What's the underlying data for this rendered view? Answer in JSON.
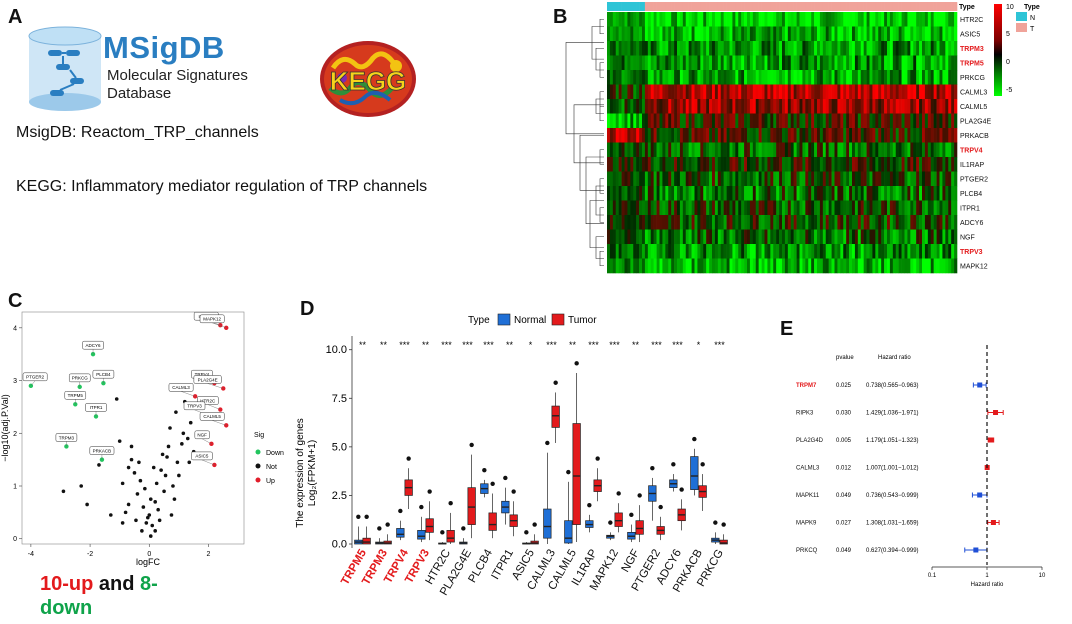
{
  "panel_labels": {
    "a": "A",
    "b": "B",
    "c": "C",
    "d": "D",
    "e": "E"
  },
  "panel_a": {
    "msigdb_logo_title": "MSigDB",
    "msigdb_logo_line1": "Molecular Signatures",
    "msigdb_logo_line2": "Database",
    "kegg_logo_text": "KEGG",
    "line1": "MsigDB: Reactom_TRP_channels",
    "line2": "KEGG: Inflammatory mediator regulation of TRP channels"
  },
  "panel_b": {
    "annotation_label": "Type",
    "genes": [
      {
        "name": "HTR2C",
        "red": false
      },
      {
        "name": "ASIC5",
        "red": false
      },
      {
        "name": "TRPM3",
        "red": true
      },
      {
        "name": "TRPM5",
        "red": true
      },
      {
        "name": "PRKCG",
        "red": false
      },
      {
        "name": "CALML3",
        "red": false
      },
      {
        "name": "CALML5",
        "red": false
      },
      {
        "name": "PLA2G4E",
        "red": false
      },
      {
        "name": "PRKACB",
        "red": false
      },
      {
        "name": "TRPV4",
        "red": true
      },
      {
        "name": "IL1RAP",
        "red": false
      },
      {
        "name": "PTGER2",
        "red": false
      },
      {
        "name": "PLCB4",
        "red": false
      },
      {
        "name": "ITPR1",
        "red": false
      },
      {
        "name": "ADCY6",
        "red": false
      },
      {
        "name": "NGF",
        "red": false
      },
      {
        "name": "TRPV3",
        "red": true
      },
      {
        "name": "MAPK12",
        "red": false
      }
    ],
    "colorbar_ticks": [
      "10",
      "5",
      "0",
      "-5"
    ],
    "legend_title": "Type",
    "legend_items": [
      {
        "label": "N",
        "color": "#2ec4d6"
      },
      {
        "label": "T",
        "color": "#f0a39a"
      }
    ]
  },
  "panel_c": {
    "chart_data": {
      "type": "scatter",
      "title": "",
      "xlabel": "logFC",
      "ylabel": "−log10(adj.P.Val)",
      "xlim": [
        -4.3,
        3.2
      ],
      "ylim": [
        -0.1,
        4.3
      ],
      "x_ticks": [
        "-4",
        "-2",
        "0",
        "2"
      ],
      "y_ticks": [
        "0",
        "1",
        "2",
        "3",
        "4"
      ],
      "legend_title": "Sig",
      "legend": [
        {
          "label": "Down",
          "color": "#22c55e"
        },
        {
          "label": "Not",
          "color": "#111111"
        },
        {
          "label": "Up",
          "color": "#e11d2a"
        }
      ],
      "labeled_points": [
        {
          "label": "IL1RAP",
          "x": 2.4,
          "y": 4.05,
          "sig": "Up"
        },
        {
          "label": "MAPK12",
          "x": 2.6,
          "y": 4.0,
          "sig": "Up"
        },
        {
          "label": "ADCY6",
          "x": -1.9,
          "y": 3.5,
          "sig": "Down"
        },
        {
          "label": "PLCB4",
          "x": -1.55,
          "y": 2.95,
          "sig": "Down"
        },
        {
          "label": "PRKCG",
          "x": -2.35,
          "y": 2.88,
          "sig": "Down"
        },
        {
          "label": "PTGER2",
          "x": -4.0,
          "y": 2.9,
          "sig": "Down"
        },
        {
          "label": "TRPV4",
          "x": 2.2,
          "y": 2.95,
          "sig": "Up"
        },
        {
          "label": "PLA2G4E",
          "x": 2.5,
          "y": 2.85,
          "sig": "Up"
        },
        {
          "label": "CALML3",
          "x": 1.55,
          "y": 2.7,
          "sig": "Up"
        },
        {
          "label": "TRPM5",
          "x": -2.5,
          "y": 2.55,
          "sig": "Down"
        },
        {
          "label": "HTR2C",
          "x": 2.4,
          "y": 2.45,
          "sig": "Up"
        },
        {
          "label": "TRPV3",
          "x": 1.95,
          "y": 2.35,
          "sig": "Up"
        },
        {
          "label": "ITPR1",
          "x": -1.8,
          "y": 2.32,
          "sig": "Down"
        },
        {
          "label": "CALML5",
          "x": 2.6,
          "y": 2.15,
          "sig": "Up"
        },
        {
          "label": "NGF",
          "x": 2.1,
          "y": 1.8,
          "sig": "Up"
        },
        {
          "label": "TRPM3",
          "x": -2.8,
          "y": 1.75,
          "sig": "Down"
        },
        {
          "label": "PRKACB",
          "x": -1.6,
          "y": 1.5,
          "sig": "Down"
        },
        {
          "label": "ASIC5",
          "x": 2.2,
          "y": 1.4,
          "sig": "Up"
        }
      ],
      "other_points": [
        [
          -2.9,
          0.9
        ],
        [
          -2.3,
          1.0
        ],
        [
          -2.1,
          0.65
        ],
        [
          -1.7,
          1.4
        ],
        [
          -1.1,
          2.65
        ],
        [
          -1.0,
          1.85
        ],
        [
          -0.9,
          1.05
        ],
        [
          -0.8,
          0.5
        ],
        [
          -0.7,
          1.35
        ],
        [
          -0.6,
          1.5
        ],
        [
          -0.5,
          1.25
        ],
        [
          -0.4,
          0.85
        ],
        [
          -0.3,
          1.1
        ],
        [
          -0.2,
          0.6
        ],
        [
          -0.1,
          0.3
        ],
        [
          0.0,
          0.45
        ],
        [
          0.1,
          0.25
        ],
        [
          0.2,
          0.7
        ],
        [
          0.3,
          0.55
        ],
        [
          0.4,
          1.3
        ],
        [
          0.5,
          0.9
        ],
        [
          0.6,
          1.55
        ],
        [
          0.7,
          2.1
        ],
        [
          0.8,
          1.0
        ],
        [
          0.9,
          2.4
        ],
        [
          1.0,
          1.2
        ],
        [
          1.1,
          1.8
        ],
        [
          1.2,
          2.6
        ],
        [
          1.3,
          1.9
        ],
        [
          1.4,
          2.2
        ],
        [
          1.5,
          1.65
        ],
        [
          -0.25,
          0.15
        ],
        [
          0.05,
          0.05
        ],
        [
          -0.45,
          0.35
        ],
        [
          0.35,
          0.35
        ],
        [
          0.75,
          0.45
        ],
        [
          -0.9,
          0.3
        ],
        [
          -0.15,
          0.95
        ],
        [
          0.25,
          1.05
        ],
        [
          0.55,
          1.2
        ],
        [
          -0.6,
          1.75
        ],
        [
          0.45,
          1.6
        ],
        [
          0.95,
          1.45
        ],
        [
          1.15,
          2.0
        ],
        [
          1.35,
          1.45
        ],
        [
          0.15,
          1.35
        ],
        [
          -0.35,
          1.45
        ],
        [
          0.65,
          1.75
        ],
        [
          -0.7,
          0.65
        ],
        [
          0.85,
          0.75
        ],
        [
          -1.3,
          0.45
        ],
        [
          0.05,
          0.75
        ],
        [
          -0.05,
          0.4
        ],
        [
          0.2,
          0.15
        ]
      ]
    },
    "summary_up": "10-up",
    "summary_and": "and",
    "summary_down_a": "8-",
    "summary_down_b": "down"
  },
  "panel_d": {
    "chart_data": {
      "type": "box",
      "title": "",
      "legend_title": "Type",
      "legend": [
        {
          "label": "Normal",
          "color": "#1f6fd6"
        },
        {
          "label": "Tumor",
          "color": "#e31a1c"
        }
      ],
      "ylabel": "The expression of genes",
      "ylabel2": "Log₂(FPKM+1)",
      "ylim": [
        0,
        10.5
      ],
      "y_ticks": [
        "0.0",
        "2.5",
        "5.0",
        "7.5",
        "10.0"
      ],
      "categories": [
        {
          "name": "TRPM5",
          "red": true,
          "sig": "**",
          "normal": [
            0.0,
            0.0,
            0.1,
            0.2,
            0.9
          ],
          "tumor": [
            0.0,
            0.0,
            0.1,
            0.3,
            0.9
          ]
        },
        {
          "name": "TRPM3",
          "red": true,
          "sig": "**",
          "normal": [
            0.0,
            0.0,
            0.05,
            0.1,
            0.3
          ],
          "tumor": [
            0.0,
            0.0,
            0.05,
            0.15,
            0.5
          ]
        },
        {
          "name": "TRPV4",
          "red": true,
          "sig": "***",
          "normal": [
            0.2,
            0.35,
            0.5,
            0.8,
            1.2
          ],
          "tumor": [
            1.8,
            2.5,
            2.9,
            3.3,
            3.9
          ]
        },
        {
          "name": "TRPV3",
          "red": true,
          "sig": "**",
          "normal": [
            0.1,
            0.25,
            0.4,
            0.7,
            1.4
          ],
          "tumor": [
            0.2,
            0.6,
            0.9,
            1.3,
            2.2
          ]
        },
        {
          "name": "HTR2C",
          "red": false,
          "sig": "***",
          "normal": [
            0.0,
            0.0,
            0.02,
            0.05,
            0.1
          ],
          "tumor": [
            0.0,
            0.1,
            0.3,
            0.7,
            1.6
          ]
        },
        {
          "name": "PLA2G4E",
          "red": false,
          "sig": "***",
          "normal": [
            0.0,
            0.0,
            0.05,
            0.1,
            0.3
          ],
          "tumor": [
            0.3,
            1.0,
            1.9,
            2.9,
            4.6
          ]
        },
        {
          "name": "PLCB4",
          "red": false,
          "sig": "***",
          "normal": [
            2.4,
            2.6,
            2.85,
            3.1,
            3.3
          ],
          "tumor": [
            0.3,
            0.7,
            1.0,
            1.6,
            2.6
          ]
        },
        {
          "name": "ITPR1",
          "red": false,
          "sig": "**",
          "normal": [
            1.0,
            1.6,
            1.9,
            2.2,
            2.9
          ],
          "tumor": [
            0.4,
            0.9,
            1.2,
            1.5,
            2.2
          ]
        },
        {
          "name": "ASIC5",
          "red": false,
          "sig": "*",
          "normal": [
            0.0,
            0.0,
            0.02,
            0.05,
            0.1
          ],
          "tumor": [
            0.0,
            0.0,
            0.05,
            0.15,
            0.5
          ]
        },
        {
          "name": "CALML3",
          "red": false,
          "sig": "***",
          "normal": [
            0.0,
            0.3,
            0.9,
            1.8,
            4.7
          ],
          "tumor": [
            5.2,
            6.0,
            6.6,
            7.1,
            7.8
          ]
        },
        {
          "name": "CALML5",
          "red": false,
          "sig": "**",
          "normal": [
            0.0,
            0.05,
            0.3,
            1.2,
            3.2
          ],
          "tumor": [
            0.1,
            1.0,
            3.5,
            6.2,
            8.8
          ]
        },
        {
          "name": "IL1RAP",
          "red": false,
          "sig": "***",
          "normal": [
            0.6,
            0.85,
            1.0,
            1.2,
            1.5
          ],
          "tumor": [
            2.2,
            2.7,
            3.0,
            3.3,
            3.9
          ]
        },
        {
          "name": "MAPK12",
          "red": false,
          "sig": "***",
          "normal": [
            0.2,
            0.3,
            0.4,
            0.45,
            0.6
          ],
          "tumor": [
            0.6,
            0.9,
            1.2,
            1.6,
            2.1
          ]
        },
        {
          "name": "NGF",
          "red": false,
          "sig": "**",
          "normal": [
            0.1,
            0.25,
            0.4,
            0.6,
            1.0
          ],
          "tumor": [
            0.1,
            0.5,
            0.8,
            1.2,
            2.0
          ]
        },
        {
          "name": "PTGER2",
          "red": false,
          "sig": "***",
          "normal": [
            1.2,
            2.2,
            2.6,
            3.0,
            3.4
          ],
          "tumor": [
            0.2,
            0.5,
            0.7,
            0.9,
            1.4
          ]
        },
        {
          "name": "ADCY6",
          "red": false,
          "sig": "***",
          "normal": [
            2.7,
            2.9,
            3.1,
            3.3,
            3.6
          ],
          "tumor": [
            0.7,
            1.2,
            1.5,
            1.8,
            2.3
          ]
        },
        {
          "name": "PRKACB",
          "red": false,
          "sig": "*",
          "normal": [
            2.5,
            2.8,
            3.5,
            4.5,
            4.9
          ],
          "tumor": [
            1.7,
            2.4,
            2.7,
            3.0,
            3.6
          ]
        },
        {
          "name": "PRKCG",
          "red": false,
          "sig": "***",
          "normal": [
            0.0,
            0.1,
            0.2,
            0.3,
            0.6
          ],
          "tumor": [
            0.0,
            0.0,
            0.05,
            0.2,
            0.5
          ]
        }
      ]
    }
  },
  "panel_e": {
    "chart_data": {
      "type": "forest",
      "col_pvalue": "pvalue",
      "col_hr": "Hazard ratio",
      "xlabel": "Hazard ratio",
      "xscale": "log",
      "xlim": [
        0.1,
        10
      ],
      "x_ticks": [
        "0.1",
        "1",
        "10"
      ],
      "rows": [
        {
          "gene": "TRPM7",
          "red": true,
          "pvalue": "0.025",
          "hr_text": "0.738(0.565−0.963)",
          "hr": 0.738,
          "lo": 0.565,
          "hi": 0.963
        },
        {
          "gene": "RIPK3",
          "red": false,
          "pvalue": "0.030",
          "hr_text": "1.429(1.036−1.971)",
          "hr": 1.429,
          "lo": 1.036,
          "hi": 1.971
        },
        {
          "gene": "PLA2G4D",
          "red": false,
          "pvalue": "0.005",
          "hr_text": "1.179(1.051−1.323)",
          "hr": 1.179,
          "lo": 1.051,
          "hi": 1.323
        },
        {
          "gene": "CALML3",
          "red": false,
          "pvalue": "0.012",
          "hr_text": "1.007(1.001−1.012)",
          "hr": 1.007,
          "lo": 1.001,
          "hi": 1.012
        },
        {
          "gene": "MAPK11",
          "red": false,
          "pvalue": "0.049",
          "hr_text": "0.736(0.543−0.999)",
          "hr": 0.736,
          "lo": 0.543,
          "hi": 0.999
        },
        {
          "gene": "MAPK9",
          "red": false,
          "pvalue": "0.027",
          "hr_text": "1.308(1.031−1.659)",
          "hr": 1.308,
          "lo": 1.031,
          "hi": 1.659
        },
        {
          "gene": "PRKCQ",
          "red": false,
          "pvalue": "0.049",
          "hr_text": "0.627(0.394−0.999)",
          "hr": 0.627,
          "lo": 0.394,
          "hi": 0.999
        }
      ]
    }
  }
}
